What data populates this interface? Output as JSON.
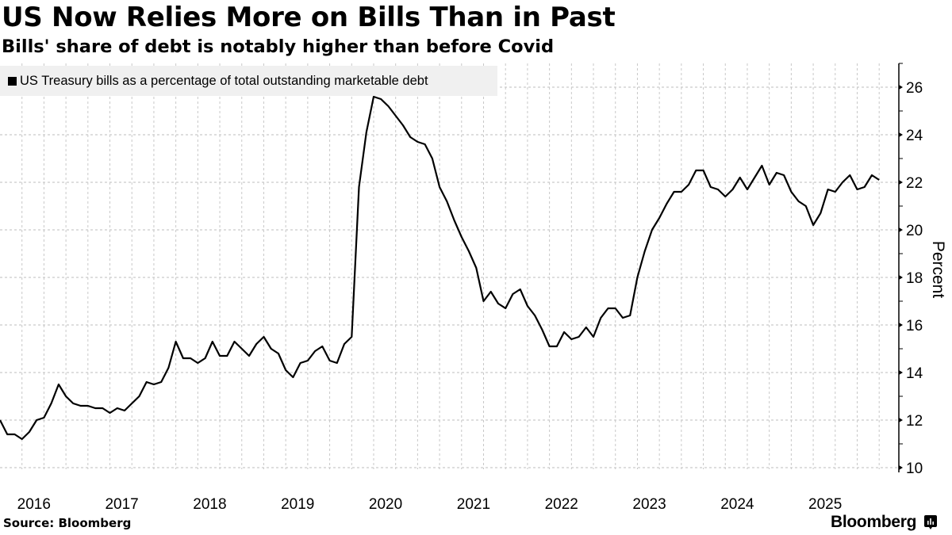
{
  "header": {
    "title": "US Now Relies More on Bills Than in Past",
    "subtitle": "Bills' share of debt is notably higher than before Covid"
  },
  "footer": {
    "source": "Source:  Bloomberg",
    "brand": "Bloomberg",
    "brand_icon": "bloomberg-chart-icon"
  },
  "chart_data": {
    "type": "line",
    "title": "US Now Relies More on Bills Than in Past",
    "subtitle": "Bills' share of debt is notably higher than before Covid",
    "xlabel": "",
    "ylabel": "Percent",
    "ylim": [
      10,
      27
    ],
    "yticks": [
      10,
      12,
      14,
      16,
      18,
      20,
      22,
      24,
      26
    ],
    "xticks": [
      "2016",
      "2017",
      "2018",
      "2019",
      "2020",
      "2021",
      "2022",
      "2023",
      "2024",
      "2025"
    ],
    "x_start": "2016-01",
    "x_frequency": "monthly",
    "grid": true,
    "legend_position": "top-left",
    "series": [
      {
        "name": "US Treasury bills as a percentage of total outstanding marketable debt",
        "color": "#000000",
        "values": [
          12.0,
          11.4,
          11.4,
          11.2,
          11.5,
          12.0,
          12.1,
          12.7,
          13.5,
          13.0,
          12.7,
          12.6,
          12.6,
          12.5,
          12.5,
          12.3,
          12.5,
          12.4,
          12.7,
          13.0,
          13.6,
          13.5,
          13.6,
          14.2,
          15.3,
          14.6,
          14.6,
          14.4,
          14.6,
          15.3,
          14.7,
          14.7,
          15.3,
          15.0,
          14.7,
          15.2,
          15.5,
          15.0,
          14.8,
          14.1,
          13.8,
          14.4,
          14.5,
          14.9,
          15.1,
          14.5,
          14.4,
          15.2,
          15.5,
          21.8,
          24.1,
          25.6,
          25.5,
          25.2,
          24.8,
          24.4,
          23.9,
          23.7,
          23.6,
          23.0,
          21.8,
          21.2,
          20.4,
          19.7,
          19.1,
          18.4,
          17.0,
          17.4,
          16.9,
          16.7,
          17.3,
          17.5,
          16.8,
          16.4,
          15.8,
          15.1,
          15.1,
          15.7,
          15.4,
          15.5,
          15.9,
          15.5,
          16.3,
          16.7,
          16.7,
          16.3,
          16.4,
          18.0,
          19.1,
          20.0,
          20.5,
          21.1,
          21.6,
          21.6,
          21.9,
          22.5,
          22.5,
          21.8,
          21.7,
          21.4,
          21.7,
          22.2,
          21.7,
          22.2,
          22.7,
          21.9,
          22.4,
          22.3,
          21.6,
          21.2,
          21.0,
          20.2,
          20.7,
          21.7,
          21.6,
          22.0,
          22.3,
          21.7,
          21.8,
          22.3,
          22.1
        ]
      }
    ]
  }
}
